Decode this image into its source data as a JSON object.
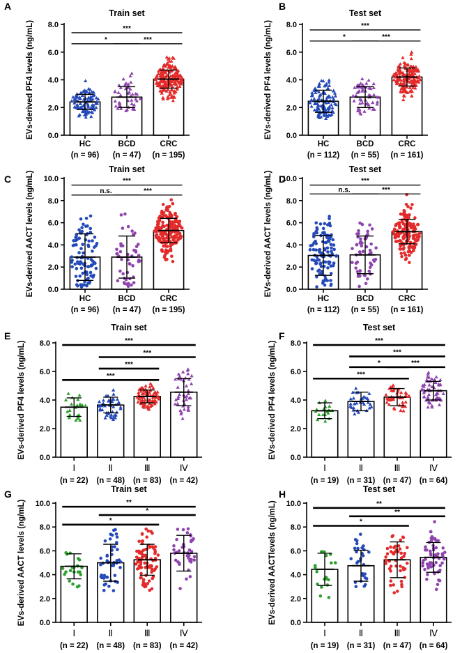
{
  "colors": {
    "green": "#2ca02c",
    "blue": "#2449b8",
    "purple": "#8e44ad",
    "red": "#e32b2b"
  },
  "chart_data": [
    {
      "panel": "A",
      "type": "bar",
      "title": "Train set",
      "ylabel": "EVs-derived PF4 levels (ng/mL)",
      "ylim": [
        0,
        8
      ],
      "yticks": [
        "0.0",
        "2.0",
        "4.0",
        "6.0",
        "8.0"
      ],
      "categories": [
        "HC",
        "BCD",
        "CRC"
      ],
      "counts": [
        "(n = 96)",
        "(n = 47)",
        "(n = 195)"
      ],
      "values": [
        2.4,
        2.75,
        4.05
      ],
      "sd": [
        0.55,
        0.75,
        0.65
      ],
      "ranges": [
        [
          1.3,
          4.0
        ],
        [
          1.5,
          4.5
        ],
        [
          2.5,
          6.2
        ]
      ],
      "n": [
        96,
        47,
        195
      ],
      "colors": [
        "blue",
        "purple",
        "red"
      ],
      "markers": [
        "triangle",
        "triangle",
        "triangle"
      ],
      "brackets": [
        {
          "from": 0,
          "to": 2,
          "y": 7.4,
          "label": "***"
        },
        {
          "from": 0,
          "to": 1,
          "y": 6.6,
          "label": "*"
        },
        {
          "from": 1,
          "to": 2,
          "y": 6.6,
          "label": "***"
        }
      ]
    },
    {
      "panel": "B",
      "type": "bar",
      "title": "Test set",
      "ylabel": "EVs-derived PF4 levels (ng/mL)",
      "ylim": [
        0,
        8
      ],
      "yticks": [
        "0.0",
        "2.0",
        "4.0",
        "6.0",
        "8.0"
      ],
      "categories": [
        "HC",
        "BCD",
        "CRC"
      ],
      "counts": [
        "(n = 112)",
        "(n = 55)",
        "(n = 161)"
      ],
      "values": [
        2.45,
        2.75,
        4.2
      ],
      "sd": [
        0.8,
        0.75,
        0.65
      ],
      "ranges": [
        [
          1.2,
          4.1
        ],
        [
          1.4,
          4.3
        ],
        [
          2.4,
          6.4
        ]
      ],
      "n": [
        112,
        55,
        161
      ],
      "colors": [
        "blue",
        "purple",
        "red"
      ],
      "markers": [
        "triangle",
        "triangle",
        "triangle"
      ],
      "brackets": [
        {
          "from": 0,
          "to": 2,
          "y": 7.6,
          "label": "***"
        },
        {
          "from": 0,
          "to": 1,
          "y": 6.8,
          "label": "*"
        },
        {
          "from": 1,
          "to": 2,
          "y": 6.8,
          "label": "***"
        }
      ]
    },
    {
      "panel": "C",
      "type": "bar",
      "title": "Train set",
      "ylabel": "EVs-derived AACT levels (ng/mL)",
      "ylim": [
        0,
        10
      ],
      "yticks": [
        "0.0",
        "2.0",
        "4.0",
        "6.0",
        "8.0",
        "10.0"
      ],
      "categories": [
        "HC",
        "BCD",
        "CRC"
      ],
      "counts": [
        "(n = 96)",
        "(n = 47)",
        "(n = 195)"
      ],
      "values": [
        2.9,
        2.9,
        5.3
      ],
      "sd": [
        2.1,
        1.9,
        1.1
      ],
      "ranges": [
        [
          0.2,
          6.7
        ],
        [
          0.2,
          7.4
        ],
        [
          2.4,
          8.2
        ]
      ],
      "n": [
        96,
        47,
        195
      ],
      "colors": [
        "blue",
        "purple",
        "red"
      ],
      "markers": [
        "circle",
        "circle",
        "circle"
      ],
      "brackets": [
        {
          "from": 0,
          "to": 2,
          "y": 9.4,
          "label": "***"
        },
        {
          "from": 0,
          "to": 1,
          "y": 8.5,
          "label": "n.s."
        },
        {
          "from": 1,
          "to": 2,
          "y": 8.5,
          "label": "***"
        }
      ]
    },
    {
      "panel": "D",
      "type": "bar",
      "title": "Test set",
      "ylabel": "EVs-derived AACT levels (ng/mL)",
      "ylim": [
        0,
        10
      ],
      "yticks": [
        "0.0",
        "2.0",
        "4.0",
        "6.0",
        "8.0",
        "10.0"
      ],
      "categories": [
        "HC",
        "BCD",
        "CRC"
      ],
      "counts": [
        "(n = 112)",
        "(n = 55)",
        "(n = 161)"
      ],
      "values": [
        3.05,
        3.1,
        5.2
      ],
      "sd": [
        1.8,
        1.7,
        1.1
      ],
      "ranges": [
        [
          0.2,
          6.6
        ],
        [
          0.2,
          6.8
        ],
        [
          2.2,
          8.6
        ]
      ],
      "n": [
        112,
        55,
        161
      ],
      "colors": [
        "blue",
        "purple",
        "red"
      ],
      "markers": [
        "circle",
        "circle",
        "circle"
      ],
      "brackets": [
        {
          "from": 0,
          "to": 2,
          "y": 9.4,
          "label": "***"
        },
        {
          "from": 0,
          "to": 1,
          "y": 8.6,
          "label": "n.s."
        },
        {
          "from": 1,
          "to": 2,
          "y": 8.6,
          "label": "***"
        }
      ]
    },
    {
      "panel": "E",
      "type": "bar",
      "title": "Train set",
      "ylabel": "EVs-derived PF4 levels (ng/mL)",
      "ylim": [
        0,
        8
      ],
      "yticks": [
        "0.0",
        "2.0",
        "4.0",
        "6.0",
        "8.0"
      ],
      "categories": [
        "Ⅰ",
        "Ⅱ",
        "Ⅲ",
        "Ⅳ"
      ],
      "counts": [
        "(n = 22)",
        "(n = 48)",
        "(n = 83)",
        "(n = 42)"
      ],
      "values": [
        3.5,
        3.65,
        4.25,
        4.55
      ],
      "sd": [
        0.65,
        0.55,
        0.45,
        0.95
      ],
      "ranges": [
        [
          2.4,
          4.6
        ],
        [
          2.6,
          5.3
        ],
        [
          3.3,
          5.6
        ],
        [
          2.7,
          6.2
        ]
      ],
      "n": [
        22,
        48,
        83,
        42
      ],
      "colors": [
        "green",
        "blue",
        "red",
        "purple"
      ],
      "markers": [
        "triangle",
        "triangle",
        "triangle",
        "triangle"
      ],
      "brackets": [
        {
          "from": 0,
          "to": 3,
          "y": 7.85,
          "label": "***"
        },
        {
          "from": 1,
          "to": 3,
          "y": 7.0,
          "label": "***"
        },
        {
          "from": 1,
          "to": 2,
          "y": 6.2,
          "label": "***"
        },
        {
          "from": 0,
          "to": 2,
          "y": 5.4,
          "label": "***"
        }
      ]
    },
    {
      "panel": "F",
      "type": "bar",
      "title": "Test set",
      "ylabel": "EVs-derived PF4 levels (ng/mL)",
      "ylim": [
        0,
        8
      ],
      "yticks": [
        "0.0",
        "2.0",
        "4.0",
        "6.0",
        "8.0"
      ],
      "categories": [
        "Ⅰ",
        "Ⅱ",
        "Ⅲ",
        "Ⅳ"
      ],
      "counts": [
        "(n = 19)",
        "(n = 31)",
        "(n = 47)",
        "(n = 64)"
      ],
      "values": [
        3.25,
        3.9,
        4.2,
        4.65
      ],
      "sd": [
        0.55,
        0.65,
        0.6,
        0.65
      ],
      "ranges": [
        [
          2.5,
          4.0
        ],
        [
          2.6,
          5.0
        ],
        [
          3.0,
          5.1
        ],
        [
          3.5,
          6.3
        ]
      ],
      "n": [
        19,
        31,
        47,
        64
      ],
      "colors": [
        "green",
        "blue",
        "red",
        "purple"
      ],
      "markers": [
        "triangle",
        "triangle",
        "triangle",
        "triangle"
      ],
      "brackets": [
        {
          "from": 0,
          "to": 3,
          "y": 7.85,
          "label": "***"
        },
        {
          "from": 1,
          "to": 3,
          "y": 7.05,
          "label": "***"
        },
        {
          "from": 1,
          "to": 2,
          "y": 6.3,
          "label": "*"
        },
        {
          "from": 2,
          "to": 3,
          "y": 6.3,
          "label": "***"
        },
        {
          "from": 0,
          "to": 2,
          "y": 5.5,
          "label": "***"
        }
      ]
    },
    {
      "panel": "G",
      "type": "bar",
      "title": "Train set",
      "ylabel": "EVs-derived AACT levels (ng/mL)",
      "ylim": [
        0,
        10
      ],
      "yticks": [
        "0.0",
        "2.0",
        "4.0",
        "6.0",
        "8.0",
        "10.0"
      ],
      "categories": [
        "Ⅰ",
        "Ⅱ",
        "Ⅲ",
        "Ⅳ"
      ],
      "counts": [
        "(n = 22)",
        "(n = 48)",
        "(n = 83)",
        "(n = 42)"
      ],
      "values": [
        4.7,
        5.0,
        5.25,
        5.8
      ],
      "sd": [
        1.05,
        1.55,
        1.3,
        1.5
      ],
      "ranges": [
        [
          2.9,
          6.8
        ],
        [
          1.8,
          7.8
        ],
        [
          2.5,
          8.0
        ],
        [
          2.8,
          8.0
        ]
      ],
      "n": [
        22,
        48,
        83,
        42
      ],
      "colors": [
        "green",
        "blue",
        "red",
        "purple"
      ],
      "markers": [
        "circle",
        "circle",
        "circle",
        "circle"
      ],
      "brackets": [
        {
          "from": 0,
          "to": 3,
          "y": 9.7,
          "label": "**"
        },
        {
          "from": 1,
          "to": 3,
          "y": 9.0,
          "label": "*"
        },
        {
          "from": 0,
          "to": 2,
          "y": 8.2,
          "label": "*"
        }
      ]
    },
    {
      "panel": "H",
      "type": "bar",
      "title": "Test set",
      "ylabel": "EVs-derived AACTlevels (ng/mL)",
      "ylim": [
        0,
        10
      ],
      "yticks": [
        "0.0",
        "2.0",
        "4.0",
        "6.0",
        "8.0",
        "10.0"
      ],
      "categories": [
        "Ⅰ",
        "Ⅱ",
        "Ⅲ",
        "Ⅳ"
      ],
      "counts": [
        "(n = 19)",
        "(n = 31)",
        "(n = 47)",
        "(n = 64)"
      ],
      "values": [
        4.45,
        4.75,
        5.25,
        5.45
      ],
      "sd": [
        1.35,
        1.3,
        1.5,
        1.25
      ],
      "ranges": [
        [
          2.0,
          6.8
        ],
        [
          2.5,
          7.4
        ],
        [
          2.3,
          8.2
        ],
        [
          2.6,
          8.5
        ]
      ],
      "n": [
        19,
        31,
        47,
        64
      ],
      "colors": [
        "green",
        "blue",
        "red",
        "purple"
      ],
      "markers": [
        "circle",
        "circle",
        "circle",
        "circle"
      ],
      "brackets": [
        {
          "from": 0,
          "to": 3,
          "y": 9.6,
          "label": "**"
        },
        {
          "from": 1,
          "to": 3,
          "y": 8.9,
          "label": "**"
        },
        {
          "from": 0,
          "to": 2,
          "y": 8.1,
          "label": "*"
        }
      ]
    }
  ]
}
